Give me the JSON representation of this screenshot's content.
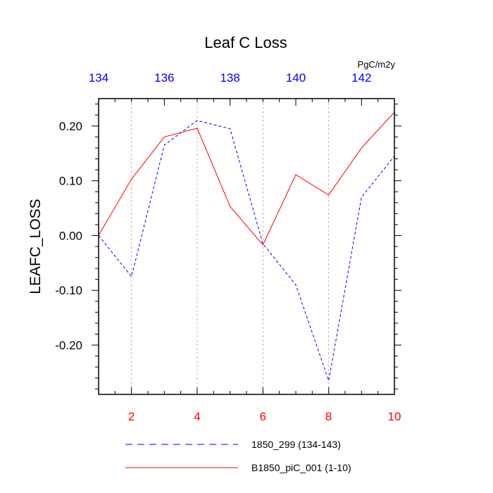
{
  "chart_data": {
    "type": "line",
    "title": "Leaf C Loss",
    "units": "PgC/m2y",
    "ylabel": "LEAFC_LOSS",
    "xlim_bottom": [
      1,
      10
    ],
    "xlim_top": [
      134,
      143
    ],
    "ylim": [
      -0.29,
      0.25
    ],
    "bottom_ticks": [
      {
        "value": 2,
        "label": "2"
      },
      {
        "value": 4,
        "label": "4"
      },
      {
        "value": 6,
        "label": "6"
      },
      {
        "value": 8,
        "label": "8"
      },
      {
        "value": 10,
        "label": "10"
      }
    ],
    "top_ticks": [
      {
        "value": 134,
        "label": "134"
      },
      {
        "value": 136,
        "label": "136"
      },
      {
        "value": 138,
        "label": "138"
      },
      {
        "value": 140,
        "label": "140"
      },
      {
        "value": 142,
        "label": "142"
      }
    ],
    "y_ticks": [
      {
        "value": 0.2,
        "label": "0.20"
      },
      {
        "value": 0.1,
        "label": "0.10"
      },
      {
        "value": 0.0,
        "label": "0.00"
      },
      {
        "value": -0.1,
        "label": "-0.10"
      },
      {
        "value": -0.2,
        "label": "-0.20"
      }
    ],
    "grid": "vertical dashed at bottom major ticks",
    "legend_position": "bottom",
    "series": [
      {
        "name": "1850_299 (134-143)",
        "axis": "top",
        "x": [
          134,
          135,
          136,
          137,
          138,
          139,
          140,
          141,
          142,
          143
        ],
        "values": [
          0.0,
          -0.075,
          0.165,
          0.21,
          0.195,
          -0.015,
          -0.09,
          -0.265,
          0.07,
          0.145
        ],
        "color": "#0000ff",
        "style": "dashed"
      },
      {
        "name": "B1850_piC_001 (1-10)",
        "axis": "bottom",
        "x": [
          1,
          2,
          3,
          4,
          5,
          6,
          7,
          8,
          9,
          10
        ],
        "values": [
          0.0,
          0.103,
          0.18,
          0.196,
          0.053,
          -0.017,
          0.111,
          0.074,
          0.16,
          0.225
        ],
        "color": "#ff0000",
        "style": "solid"
      }
    ],
    "bottom_tick_color": "#ff0000",
    "top_tick_color": "#0000ff"
  }
}
